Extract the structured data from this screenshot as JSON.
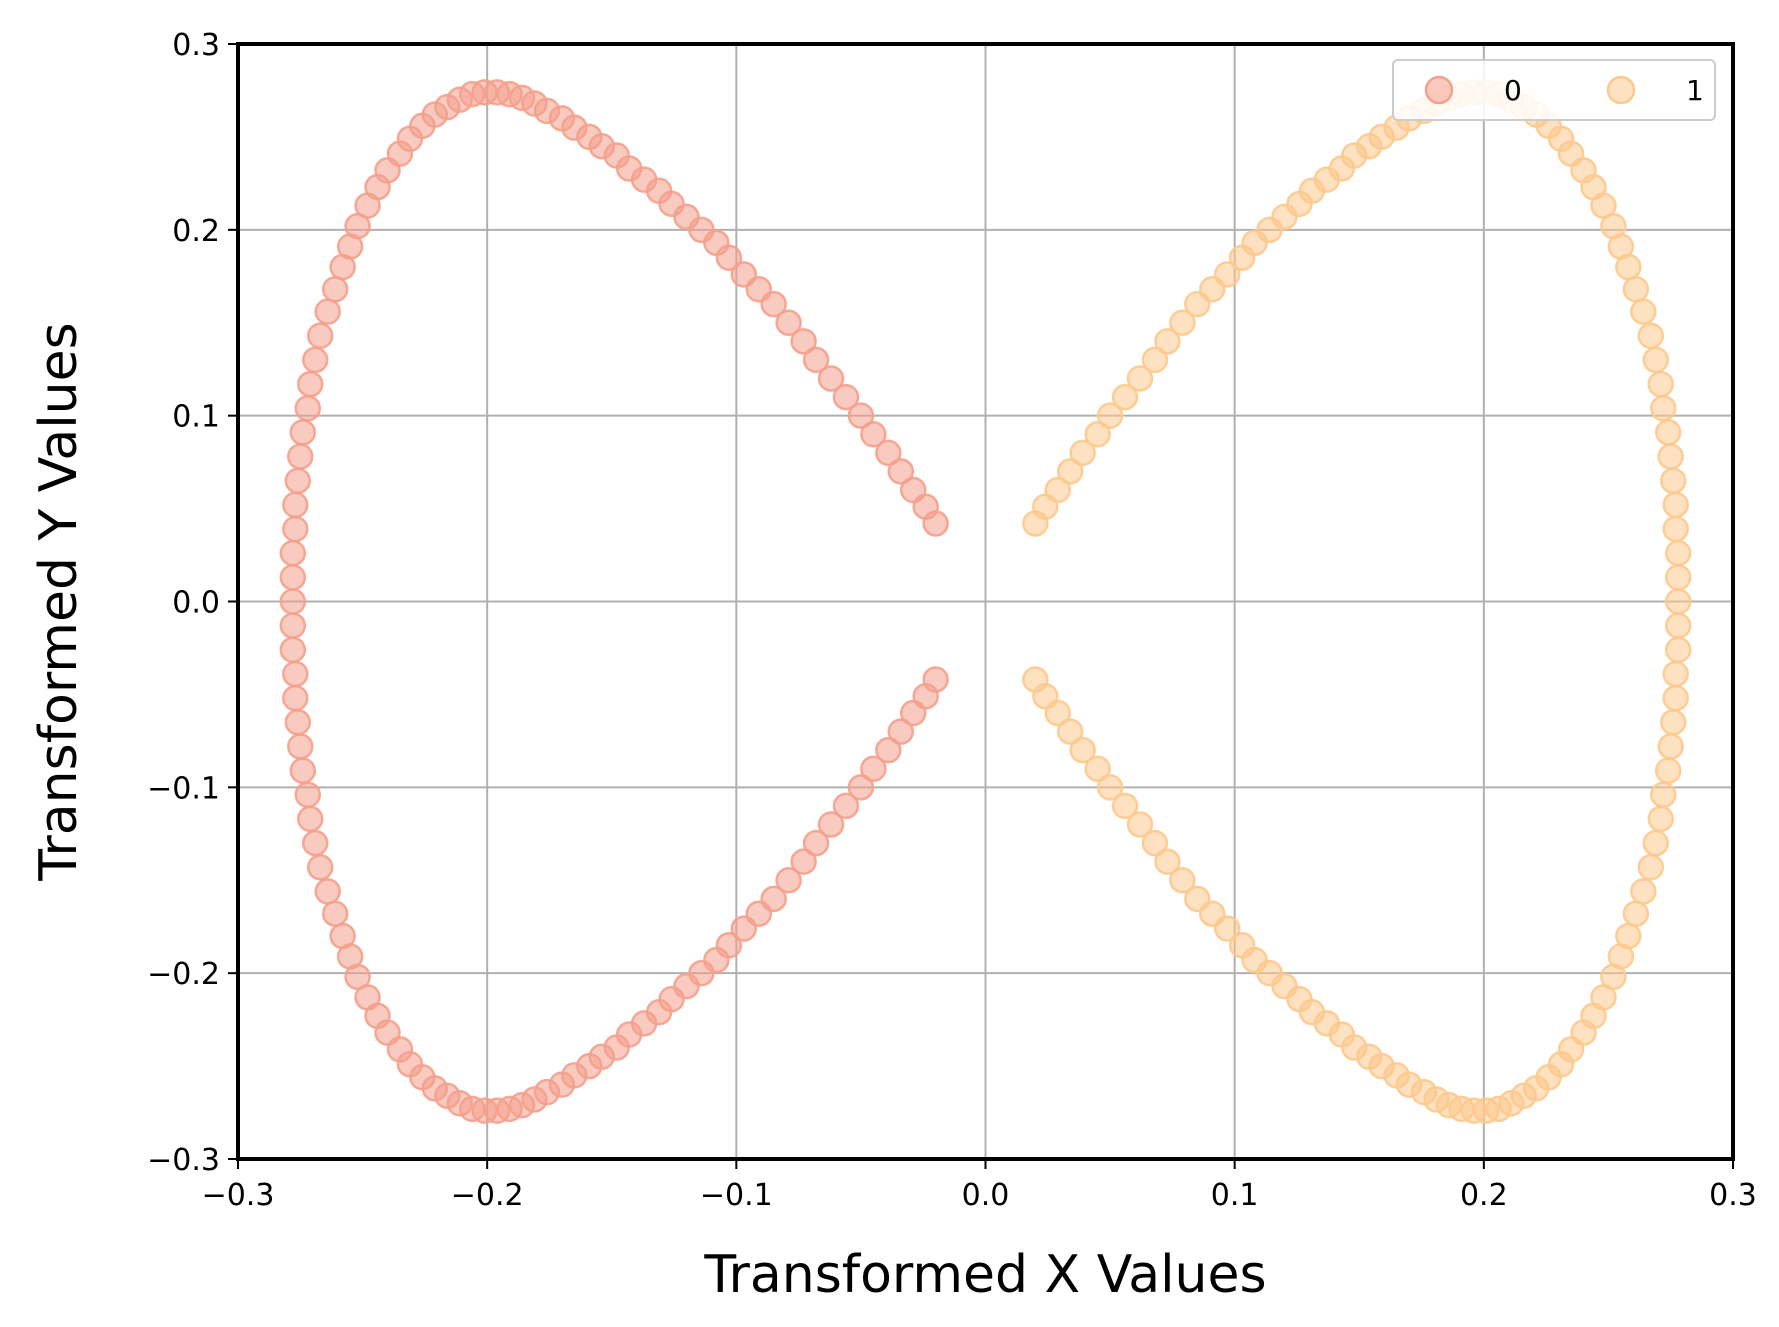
{
  "chart_data": {
    "type": "scatter",
    "title": "",
    "xlabel": "Transformed X Values",
    "ylabel": "Transformed Y Values",
    "xlim": [
      -0.3,
      0.3
    ],
    "ylim": [
      -0.3,
      0.3
    ],
    "grid": true,
    "legend": {
      "placement": "top-right",
      "columns": 2
    },
    "x_ticks": [
      {
        "value": -0.3,
        "label": "−0.3"
      },
      {
        "value": -0.2,
        "label": "−0.2"
      },
      {
        "value": -0.1,
        "label": "−0.1"
      },
      {
        "value": 0.0,
        "label": "0.0"
      },
      {
        "value": 0.1,
        "label": "0.1"
      },
      {
        "value": 0.2,
        "label": "0.2"
      },
      {
        "value": 0.3,
        "label": "0.3"
      }
    ],
    "y_ticks": [
      {
        "value": -0.3,
        "label": "−0.3"
      },
      {
        "value": -0.2,
        "label": "−0.2"
      },
      {
        "value": -0.1,
        "label": "−0.1"
      },
      {
        "value": 0.0,
        "label": "0.0"
      },
      {
        "value": 0.1,
        "label": "0.1"
      },
      {
        "value": 0.2,
        "label": "0.2"
      },
      {
        "value": 0.3,
        "label": "0.3"
      }
    ],
    "series": [
      {
        "name": "0",
        "color": "#f4a08c",
        "points": [
          [
            -0.02,
            0.042
          ],
          [
            -0.024,
            0.051
          ],
          [
            -0.029,
            0.06
          ],
          [
            -0.034,
            0.07
          ],
          [
            -0.039,
            0.08
          ],
          [
            -0.045,
            0.09
          ],
          [
            -0.05,
            0.1
          ],
          [
            -0.056,
            0.11
          ],
          [
            -0.062,
            0.12
          ],
          [
            -0.068,
            0.13
          ],
          [
            -0.073,
            0.14
          ],
          [
            -0.079,
            0.15
          ],
          [
            -0.085,
            0.16
          ],
          [
            -0.091,
            0.168
          ],
          [
            -0.097,
            0.176
          ],
          [
            -0.103,
            0.185
          ],
          [
            -0.108,
            0.193
          ],
          [
            -0.114,
            0.2
          ],
          [
            -0.12,
            0.207
          ],
          [
            -0.126,
            0.214
          ],
          [
            -0.131,
            0.221
          ],
          [
            -0.137,
            0.227
          ],
          [
            -0.143,
            0.233
          ],
          [
            -0.148,
            0.24
          ],
          [
            -0.154,
            0.245
          ],
          [
            -0.159,
            0.25
          ],
          [
            -0.165,
            0.255
          ],
          [
            -0.17,
            0.26
          ],
          [
            -0.176,
            0.264
          ],
          [
            -0.181,
            0.268
          ],
          [
            -0.186,
            0.271
          ],
          [
            -0.191,
            0.273
          ],
          [
            -0.196,
            0.274
          ],
          [
            -0.201,
            0.274
          ],
          [
            -0.206,
            0.273
          ],
          [
            -0.211,
            0.27
          ],
          [
            -0.216,
            0.266
          ],
          [
            -0.221,
            0.262
          ],
          [
            -0.226,
            0.256
          ],
          [
            -0.231,
            0.249
          ],
          [
            -0.235,
            0.241
          ],
          [
            -0.24,
            0.232
          ],
          [
            -0.244,
            0.223
          ],
          [
            -0.248,
            0.213
          ],
          [
            -0.252,
            0.202
          ],
          [
            -0.255,
            0.191
          ],
          [
            -0.258,
            0.18
          ],
          [
            -0.261,
            0.168
          ],
          [
            -0.264,
            0.156
          ],
          [
            -0.267,
            0.143
          ],
          [
            -0.269,
            0.13
          ],
          [
            -0.271,
            0.117
          ],
          [
            -0.272,
            0.104
          ],
          [
            -0.274,
            0.091
          ],
          [
            -0.275,
            0.078
          ],
          [
            -0.276,
            0.065
          ],
          [
            -0.277,
            0.052
          ],
          [
            -0.277,
            0.039
          ],
          [
            -0.278,
            0.026
          ],
          [
            -0.278,
            0.013
          ],
          [
            -0.278,
            0.0
          ],
          [
            -0.02,
            -0.042
          ],
          [
            -0.024,
            -0.051
          ],
          [
            -0.029,
            -0.06
          ],
          [
            -0.034,
            -0.07
          ],
          [
            -0.039,
            -0.08
          ],
          [
            -0.045,
            -0.09
          ],
          [
            -0.05,
            -0.1
          ],
          [
            -0.056,
            -0.11
          ],
          [
            -0.062,
            -0.12
          ],
          [
            -0.068,
            -0.13
          ],
          [
            -0.073,
            -0.14
          ],
          [
            -0.079,
            -0.15
          ],
          [
            -0.085,
            -0.16
          ],
          [
            -0.091,
            -0.168
          ],
          [
            -0.097,
            -0.176
          ],
          [
            -0.103,
            -0.185
          ],
          [
            -0.108,
            -0.193
          ],
          [
            -0.114,
            -0.2
          ],
          [
            -0.12,
            -0.207
          ],
          [
            -0.126,
            -0.214
          ],
          [
            -0.131,
            -0.221
          ],
          [
            -0.137,
            -0.227
          ],
          [
            -0.143,
            -0.233
          ],
          [
            -0.148,
            -0.24
          ],
          [
            -0.154,
            -0.245
          ],
          [
            -0.159,
            -0.25
          ],
          [
            -0.165,
            -0.255
          ],
          [
            -0.17,
            -0.26
          ],
          [
            -0.176,
            -0.264
          ],
          [
            -0.181,
            -0.268
          ],
          [
            -0.186,
            -0.271
          ],
          [
            -0.191,
            -0.273
          ],
          [
            -0.196,
            -0.274
          ],
          [
            -0.201,
            -0.274
          ],
          [
            -0.206,
            -0.273
          ],
          [
            -0.211,
            -0.27
          ],
          [
            -0.216,
            -0.266
          ],
          [
            -0.221,
            -0.262
          ],
          [
            -0.226,
            -0.256
          ],
          [
            -0.231,
            -0.249
          ],
          [
            -0.235,
            -0.241
          ],
          [
            -0.24,
            -0.232
          ],
          [
            -0.244,
            -0.223
          ],
          [
            -0.248,
            -0.213
          ],
          [
            -0.252,
            -0.202
          ],
          [
            -0.255,
            -0.191
          ],
          [
            -0.258,
            -0.18
          ],
          [
            -0.261,
            -0.168
          ],
          [
            -0.264,
            -0.156
          ],
          [
            -0.267,
            -0.143
          ],
          [
            -0.269,
            -0.13
          ],
          [
            -0.271,
            -0.117
          ],
          [
            -0.272,
            -0.104
          ],
          [
            -0.274,
            -0.091
          ],
          [
            -0.275,
            -0.078
          ],
          [
            -0.276,
            -0.065
          ],
          [
            -0.277,
            -0.052
          ],
          [
            -0.277,
            -0.039
          ],
          [
            -0.278,
            -0.026
          ],
          [
            -0.278,
            -0.013
          ]
        ]
      },
      {
        "name": "1",
        "color": "#fdc98d",
        "points": [
          [
            0.02,
            0.042
          ],
          [
            0.024,
            0.051
          ],
          [
            0.029,
            0.06
          ],
          [
            0.034,
            0.07
          ],
          [
            0.039,
            0.08
          ],
          [
            0.045,
            0.09
          ],
          [
            0.05,
            0.1
          ],
          [
            0.056,
            0.11
          ],
          [
            0.062,
            0.12
          ],
          [
            0.068,
            0.13
          ],
          [
            0.073,
            0.14
          ],
          [
            0.079,
            0.15
          ],
          [
            0.085,
            0.16
          ],
          [
            0.091,
            0.168
          ],
          [
            0.097,
            0.176
          ],
          [
            0.103,
            0.185
          ],
          [
            0.108,
            0.193
          ],
          [
            0.114,
            0.2
          ],
          [
            0.12,
            0.207
          ],
          [
            0.126,
            0.214
          ],
          [
            0.131,
            0.221
          ],
          [
            0.137,
            0.227
          ],
          [
            0.143,
            0.233
          ],
          [
            0.148,
            0.24
          ],
          [
            0.154,
            0.245
          ],
          [
            0.159,
            0.25
          ],
          [
            0.165,
            0.255
          ],
          [
            0.17,
            0.26
          ],
          [
            0.176,
            0.264
          ],
          [
            0.181,
            0.268
          ],
          [
            0.186,
            0.271
          ],
          [
            0.191,
            0.273
          ],
          [
            0.196,
            0.274
          ],
          [
            0.201,
            0.274
          ],
          [
            0.206,
            0.273
          ],
          [
            0.211,
            0.27
          ],
          [
            0.216,
            0.266
          ],
          [
            0.221,
            0.262
          ],
          [
            0.226,
            0.256
          ],
          [
            0.231,
            0.249
          ],
          [
            0.235,
            0.241
          ],
          [
            0.24,
            0.232
          ],
          [
            0.244,
            0.223
          ],
          [
            0.248,
            0.213
          ],
          [
            0.252,
            0.202
          ],
          [
            0.255,
            0.191
          ],
          [
            0.258,
            0.18
          ],
          [
            0.261,
            0.168
          ],
          [
            0.264,
            0.156
          ],
          [
            0.267,
            0.143
          ],
          [
            0.269,
            0.13
          ],
          [
            0.271,
            0.117
          ],
          [
            0.272,
            0.104
          ],
          [
            0.274,
            0.091
          ],
          [
            0.275,
            0.078
          ],
          [
            0.276,
            0.065
          ],
          [
            0.277,
            0.052
          ],
          [
            0.277,
            0.039
          ],
          [
            0.278,
            0.026
          ],
          [
            0.278,
            0.013
          ],
          [
            0.278,
            0.0
          ],
          [
            0.02,
            -0.042
          ],
          [
            0.024,
            -0.051
          ],
          [
            0.029,
            -0.06
          ],
          [
            0.034,
            -0.07
          ],
          [
            0.039,
            -0.08
          ],
          [
            0.045,
            -0.09
          ],
          [
            0.05,
            -0.1
          ],
          [
            0.056,
            -0.11
          ],
          [
            0.062,
            -0.12
          ],
          [
            0.068,
            -0.13
          ],
          [
            0.073,
            -0.14
          ],
          [
            0.079,
            -0.15
          ],
          [
            0.085,
            -0.16
          ],
          [
            0.091,
            -0.168
          ],
          [
            0.097,
            -0.176
          ],
          [
            0.103,
            -0.185
          ],
          [
            0.108,
            -0.193
          ],
          [
            0.114,
            -0.2
          ],
          [
            0.12,
            -0.207
          ],
          [
            0.126,
            -0.214
          ],
          [
            0.131,
            -0.221
          ],
          [
            0.137,
            -0.227
          ],
          [
            0.143,
            -0.233
          ],
          [
            0.148,
            -0.24
          ],
          [
            0.154,
            -0.245
          ],
          [
            0.159,
            -0.25
          ],
          [
            0.165,
            -0.255
          ],
          [
            0.17,
            -0.26
          ],
          [
            0.176,
            -0.264
          ],
          [
            0.181,
            -0.268
          ],
          [
            0.186,
            -0.271
          ],
          [
            0.191,
            -0.273
          ],
          [
            0.196,
            -0.274
          ],
          [
            0.201,
            -0.274
          ],
          [
            0.206,
            -0.273
          ],
          [
            0.211,
            -0.27
          ],
          [
            0.216,
            -0.266
          ],
          [
            0.221,
            -0.262
          ],
          [
            0.226,
            -0.256
          ],
          [
            0.231,
            -0.249
          ],
          [
            0.235,
            -0.241
          ],
          [
            0.24,
            -0.232
          ],
          [
            0.244,
            -0.223
          ],
          [
            0.248,
            -0.213
          ],
          [
            0.252,
            -0.202
          ],
          [
            0.255,
            -0.191
          ],
          [
            0.258,
            -0.18
          ],
          [
            0.261,
            -0.168
          ],
          [
            0.264,
            -0.156
          ],
          [
            0.267,
            -0.143
          ],
          [
            0.269,
            -0.13
          ],
          [
            0.271,
            -0.117
          ],
          [
            0.272,
            -0.104
          ],
          [
            0.274,
            -0.091
          ],
          [
            0.275,
            -0.078
          ],
          [
            0.276,
            -0.065
          ],
          [
            0.277,
            -0.052
          ],
          [
            0.277,
            -0.039
          ],
          [
            0.278,
            -0.026
          ],
          [
            0.278,
            -0.013
          ]
        ]
      }
    ]
  }
}
